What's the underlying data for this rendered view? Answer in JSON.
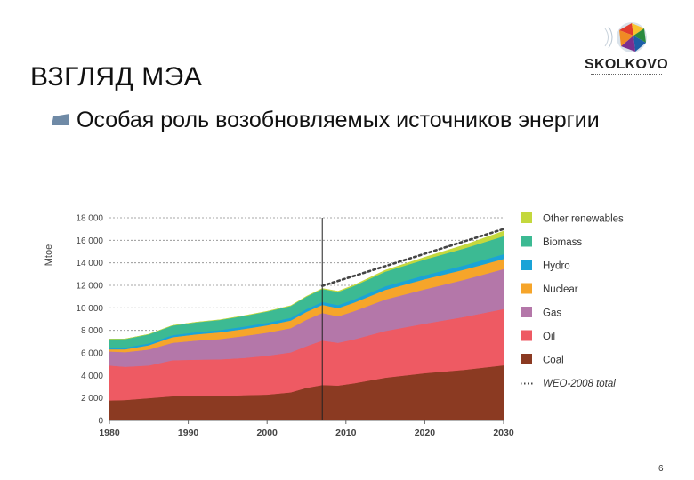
{
  "slide": {
    "title": "ВЗГЛЯД МЭА",
    "bullet": "Особая роль возобновляемых источников энергии",
    "page_number": "6"
  },
  "logo": {
    "text": "SKOLKOVO"
  },
  "colors": {
    "coal": "#8b3a22",
    "oil": "#ee5a63",
    "gas": "#b477a9",
    "nuclear": "#f6a52a",
    "hydro": "#1aa3d7",
    "biomass": "#3cba93",
    "other_renewables": "#c4d83d",
    "bullet_marker": "#6f8aa6"
  },
  "chart_data": {
    "type": "area",
    "stacked": true,
    "ylabel": "Mtoe",
    "ylim": [
      0,
      18000
    ],
    "xlim": [
      1980,
      2030
    ],
    "x_ticks": [
      "1980",
      "1990",
      "2000",
      "2010",
      "2020",
      "2030"
    ],
    "y_ticks": [
      "0",
      "2 000",
      "4 000",
      "6 000",
      "8 000",
      "10 000",
      "12 000",
      "14 000",
      "16 000",
      "18 000"
    ],
    "grid": true,
    "vertical_marker_year": 2007,
    "legend_position": "right",
    "x": [
      1980,
      1982,
      1985,
      1988,
      1991,
      1994,
      1997,
      2000,
      2003,
      2005,
      2007,
      2009,
      2011,
      2015,
      2020,
      2025,
      2030
    ],
    "series": [
      {
        "name": "Coal",
        "key": "coal",
        "values": [
          1780,
          1820,
          1980,
          2150,
          2150,
          2180,
          2250,
          2300,
          2500,
          2900,
          3150,
          3100,
          3300,
          3800,
          4200,
          4500,
          4900
        ]
      },
      {
        "name": "Oil",
        "key": "oil",
        "values": [
          3100,
          2950,
          2900,
          3200,
          3250,
          3250,
          3300,
          3450,
          3550,
          3700,
          3950,
          3800,
          3900,
          4150,
          4400,
          4700,
          5000
        ]
      },
      {
        "name": "Gas",
        "key": "gas",
        "values": [
          1250,
          1300,
          1420,
          1550,
          1700,
          1800,
          1950,
          2050,
          2150,
          2350,
          2450,
          2350,
          2500,
          2800,
          3050,
          3300,
          3550
        ]
      },
      {
        "name": "Nuclear",
        "key": "nuclear",
        "values": [
          190,
          250,
          380,
          500,
          550,
          600,
          620,
          650,
          680,
          700,
          720,
          730,
          760,
          850,
          900,
          900,
          900
        ]
      },
      {
        "name": "Hydro",
        "key": "hydro",
        "values": [
          150,
          150,
          170,
          180,
          190,
          200,
          210,
          225,
          240,
          250,
          260,
          270,
          280,
          320,
          350,
          380,
          420
        ]
      },
      {
        "name": "Biomass",
        "key": "biomass",
        "values": [
          760,
          770,
          800,
          850,
          880,
          900,
          950,
          1000,
          1050,
          1100,
          1150,
          1170,
          1200,
          1300,
          1400,
          1500,
          1600
        ]
      },
      {
        "name": "Other renewables",
        "key": "other_renewables",
        "values": [
          5,
          5,
          8,
          10,
          12,
          15,
          18,
          22,
          28,
          35,
          45,
          60,
          80,
          130,
          200,
          300,
          450
        ]
      }
    ],
    "total_line": {
      "name": "WEO-2008 total",
      "x": [
        2007,
        2030
      ],
      "values": [
        11950,
        17000
      ]
    },
    "legend": [
      {
        "label": "Other renewables",
        "key": "other_renewables",
        "style": "box"
      },
      {
        "label": "Biomass",
        "key": "biomass",
        "style": "box"
      },
      {
        "label": "Hydro",
        "key": "hydro",
        "style": "box"
      },
      {
        "label": "Nuclear",
        "key": "nuclear",
        "style": "box"
      },
      {
        "label": "Gas",
        "key": "gas",
        "style": "box"
      },
      {
        "label": "Oil",
        "key": "oil",
        "style": "box"
      },
      {
        "label": "Coal",
        "key": "coal",
        "style": "box"
      },
      {
        "label": "WEO-2008 total",
        "key": "total",
        "style": "dotted"
      }
    ]
  }
}
